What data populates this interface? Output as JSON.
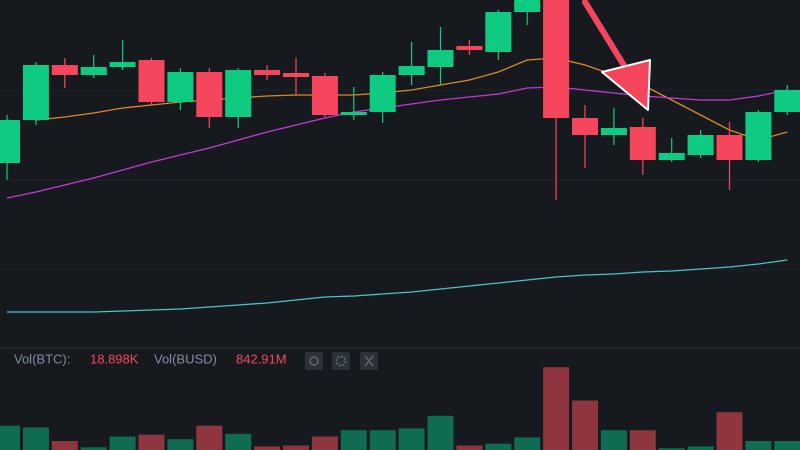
{
  "chart_data": {
    "type": "candlestick",
    "ylim": [
      0,
      350
    ],
    "up_color": "#0ecb81",
    "down_color": "#f6465d",
    "candles": {
      "open": [
        187,
        230,
        285,
        275,
        283,
        290,
        248,
        278,
        233,
        280,
        277,
        274,
        235,
        238,
        275,
        283,
        304,
        298,
        338,
        350,
        232,
        215,
        223,
        190,
        195,
        215,
        190,
        238
      ],
      "high": [
        235,
        288,
        292,
        295,
        310,
        292,
        282,
        282,
        282,
        285,
        292,
        277,
        263,
        278,
        308,
        323,
        310,
        340,
        350,
        350,
        245,
        242,
        232,
        212,
        220,
        228,
        240,
        265
      ],
      "low": [
        170,
        225,
        262,
        272,
        280,
        245,
        240,
        222,
        222,
        270,
        255,
        233,
        230,
        227,
        265,
        265,
        295,
        290,
        325,
        150,
        182,
        205,
        175,
        188,
        192,
        160,
        188,
        235
      ],
      "close": [
        230,
        285,
        275,
        283,
        288,
        248,
        278,
        233,
        280,
        275,
        273,
        235,
        238,
        275,
        284,
        300,
        300,
        338,
        350,
        232,
        215,
        222,
        190,
        197,
        215,
        190,
        238,
        260
      ]
    },
    "series": [
      {
        "color": "#d9892b",
        "values": [
          null,
          230,
          233,
          237,
          242,
          245,
          248,
          250,
          252,
          254,
          255,
          255,
          255,
          257,
          260,
          265,
          270,
          278,
          290,
          292,
          285,
          275,
          265,
          250,
          235,
          220,
          210,
          218
        ]
      },
      {
        "color": "#c23ad6",
        "values": [
          152,
          158,
          165,
          172,
          180,
          188,
          195,
          202,
          210,
          218,
          225,
          232,
          238,
          242,
          246,
          250,
          253,
          256,
          262,
          263,
          260,
          257,
          254,
          252,
          250,
          250,
          254,
          260
        ]
      },
      {
        "color": "#4fc3c7",
        "values": [
          38,
          38,
          38,
          38,
          39,
          40,
          41,
          43,
          45,
          47,
          50,
          53,
          54,
          56,
          58,
          61,
          64,
          67,
          70,
          73,
          75,
          76,
          78,
          79,
          81,
          83,
          86,
          90
        ]
      }
    ],
    "volume": {
      "ylim": [
        0,
        100
      ],
      "up_color": "#0f6b52",
      "down_color": "#8e3540",
      "values": [
        27,
        25,
        10,
        3,
        15,
        17,
        12,
        27,
        18,
        4,
        5,
        15,
        22,
        22,
        24,
        38,
        5,
        7,
        14,
        92,
        55,
        22,
        22,
        2,
        4,
        42,
        10,
        10
      ]
    },
    "legend": {
      "vol_btc_label": "Vol(BTC):",
      "vol_btc_value": "18.898K",
      "vol_busd_label": "Vol(BUSD)",
      "vol_busd_value": "842.91M"
    }
  }
}
